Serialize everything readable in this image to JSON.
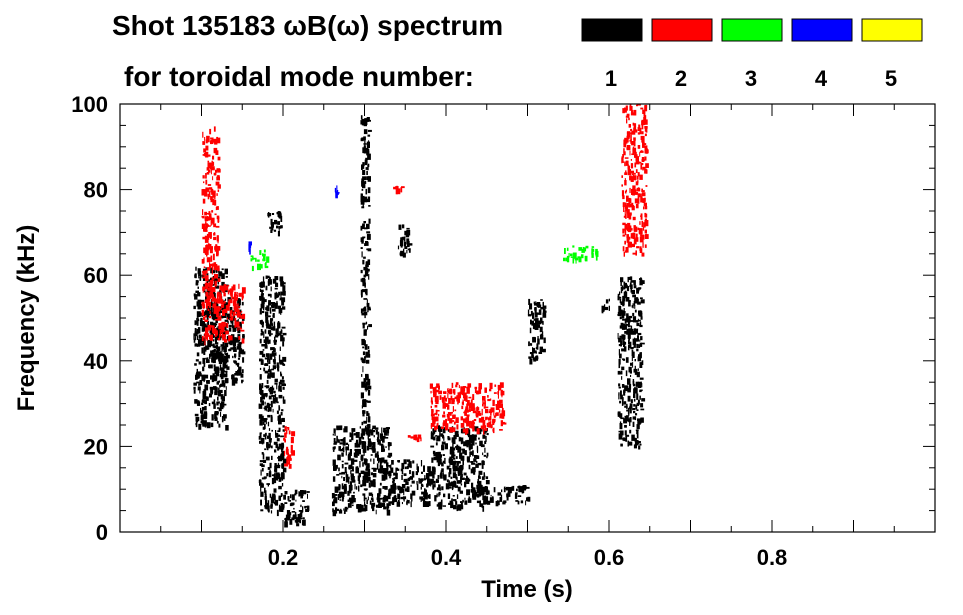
{
  "chart_data": {
    "type": "heatmap",
    "title_line1": "Shot 135183 ωB(ω) spectrum",
    "title_line2": "for toroidal mode number:",
    "xlabel": "Time (s)",
    "ylabel": "Frequency (kHz)",
    "xlim": [
      0.0,
      1.0
    ],
    "ylim": [
      0,
      100
    ],
    "x_ticks": [
      0.2,
      0.4,
      0.6,
      0.8
    ],
    "x_tick_labels": [
      "0.2",
      "0.4",
      "0.6",
      "0.8"
    ],
    "y_ticks": [
      0,
      20,
      40,
      60,
      80,
      100
    ],
    "y_tick_labels": [
      "0",
      "20",
      "40",
      "60",
      "80",
      "100"
    ],
    "grid": false,
    "legend": [
      {
        "label": "1",
        "color": "#000000"
      },
      {
        "label": "2",
        "color": "#ff0000"
      },
      {
        "label": "3",
        "color": "#00ff00"
      },
      {
        "label": "4",
        "color": "#0000ff"
      },
      {
        "label": "5",
        "color": "#ffff00"
      }
    ],
    "series": [
      {
        "name": "1",
        "color": "#000000",
        "blobs": [
          {
            "t": [
              0.09,
              0.13
            ],
            "f": [
              25,
              62
            ]
          },
          {
            "t": [
              0.11,
              0.15
            ],
            "f": [
              35,
              55
            ]
          },
          {
            "t": [
              0.17,
              0.2
            ],
            "f": [
              5,
              60
            ]
          },
          {
            "t": [
              0.18,
              0.2
            ],
            "f": [
              70,
              75
            ]
          },
          {
            "t": [
              0.2,
              0.23
            ],
            "f": [
              2,
              10
            ]
          },
          {
            "t": [
              0.26,
              0.33
            ],
            "f": [
              5,
              25
            ]
          },
          {
            "t": [
              0.295,
              0.305
            ],
            "f": [
              20,
              98
            ]
          },
          {
            "t": [
              0.33,
              0.38
            ],
            "f": [
              7,
              17
            ]
          },
          {
            "t": [
              0.34,
              0.355
            ],
            "f": [
              65,
              72
            ]
          },
          {
            "t": [
              0.38,
              0.45
            ],
            "f": [
              6,
              25
            ]
          },
          {
            "t": [
              0.43,
              0.5
            ],
            "f": [
              7,
              11
            ]
          },
          {
            "t": [
              0.5,
              0.52
            ],
            "f": [
              40,
              55
            ]
          },
          {
            "t": [
              0.59,
              0.6
            ],
            "f": [
              52,
              55
            ]
          },
          {
            "t": [
              0.61,
              0.64
            ],
            "f": [
              20,
              60
            ]
          }
        ]
      },
      {
        "name": "2",
        "color": "#ff0000",
        "blobs": [
          {
            "t": [
              0.1,
              0.12
            ],
            "f": [
              45,
              95
            ]
          },
          {
            "t": [
              0.12,
              0.15
            ],
            "f": [
              45,
              58
            ]
          },
          {
            "t": [
              0.2,
              0.21
            ],
            "f": [
              15,
              25
            ]
          },
          {
            "t": [
              0.33,
              0.35
            ],
            "f": [
              80,
              81
            ]
          },
          {
            "t": [
              0.35,
              0.37
            ],
            "f": [
              22,
              23
            ]
          },
          {
            "t": [
              0.38,
              0.47
            ],
            "f": [
              24,
              35
            ]
          },
          {
            "t": [
              0.615,
              0.645
            ],
            "f": [
              65,
              100
            ]
          }
        ]
      },
      {
        "name": "3",
        "color": "#00ff00",
        "blobs": [
          {
            "t": [
              0.16,
              0.18
            ],
            "f": [
              62,
              66
            ]
          },
          {
            "t": [
              0.54,
              0.585
            ],
            "f": [
              64,
              67
            ]
          }
        ]
      },
      {
        "name": "4",
        "color": "#0000ff",
        "blobs": [
          {
            "t": [
              0.155,
              0.16
            ],
            "f": [
              66,
              68
            ]
          },
          {
            "t": [
              0.263,
              0.266
            ],
            "f": [
              79,
              81
            ]
          }
        ]
      },
      {
        "name": "5",
        "color": "#ffff00",
        "blobs": []
      }
    ]
  }
}
